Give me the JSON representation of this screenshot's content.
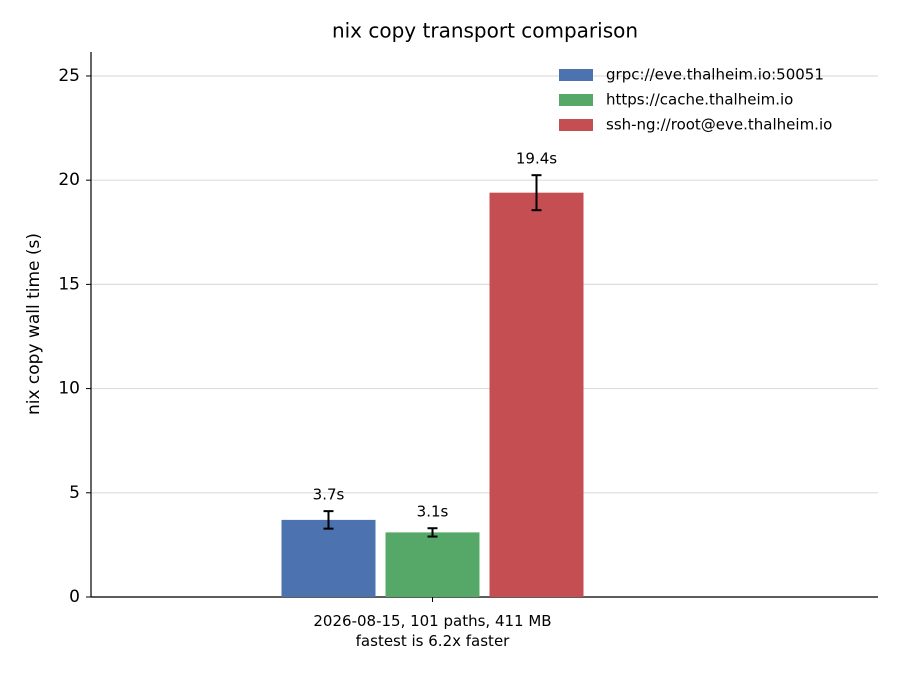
{
  "chart_data": {
    "type": "bar",
    "title": "nix copy transport comparison",
    "y_label": "nix copy wall time (s)",
    "categories": [
      "2026-08-15, 101 paths, 411 MB\nfastest is 6.2x faster"
    ],
    "series": [
      {
        "name": "grpc://eve.thalheim.io:50051",
        "color": "#4c72b0",
        "values": [
          3.7
        ],
        "errors": [
          0.42
        ],
        "value_labels": [
          "3.7s"
        ]
      },
      {
        "name": "https://cache.thalheim.io",
        "color": "#55a868",
        "values": [
          3.1
        ],
        "errors": [
          0.2
        ],
        "value_labels": [
          "3.1s"
        ]
      },
      {
        "name": "ssh-ng://root@eve.thalheim.io",
        "color": "#c44e52",
        "values": [
          19.4
        ],
        "errors": [
          0.84
        ],
        "value_labels": [
          "19.4s"
        ]
      }
    ],
    "ylim": [
      0,
      26.15
    ],
    "yticks": [
      0,
      5,
      10,
      15,
      20,
      25
    ],
    "grid": true,
    "legend": "upper right"
  }
}
